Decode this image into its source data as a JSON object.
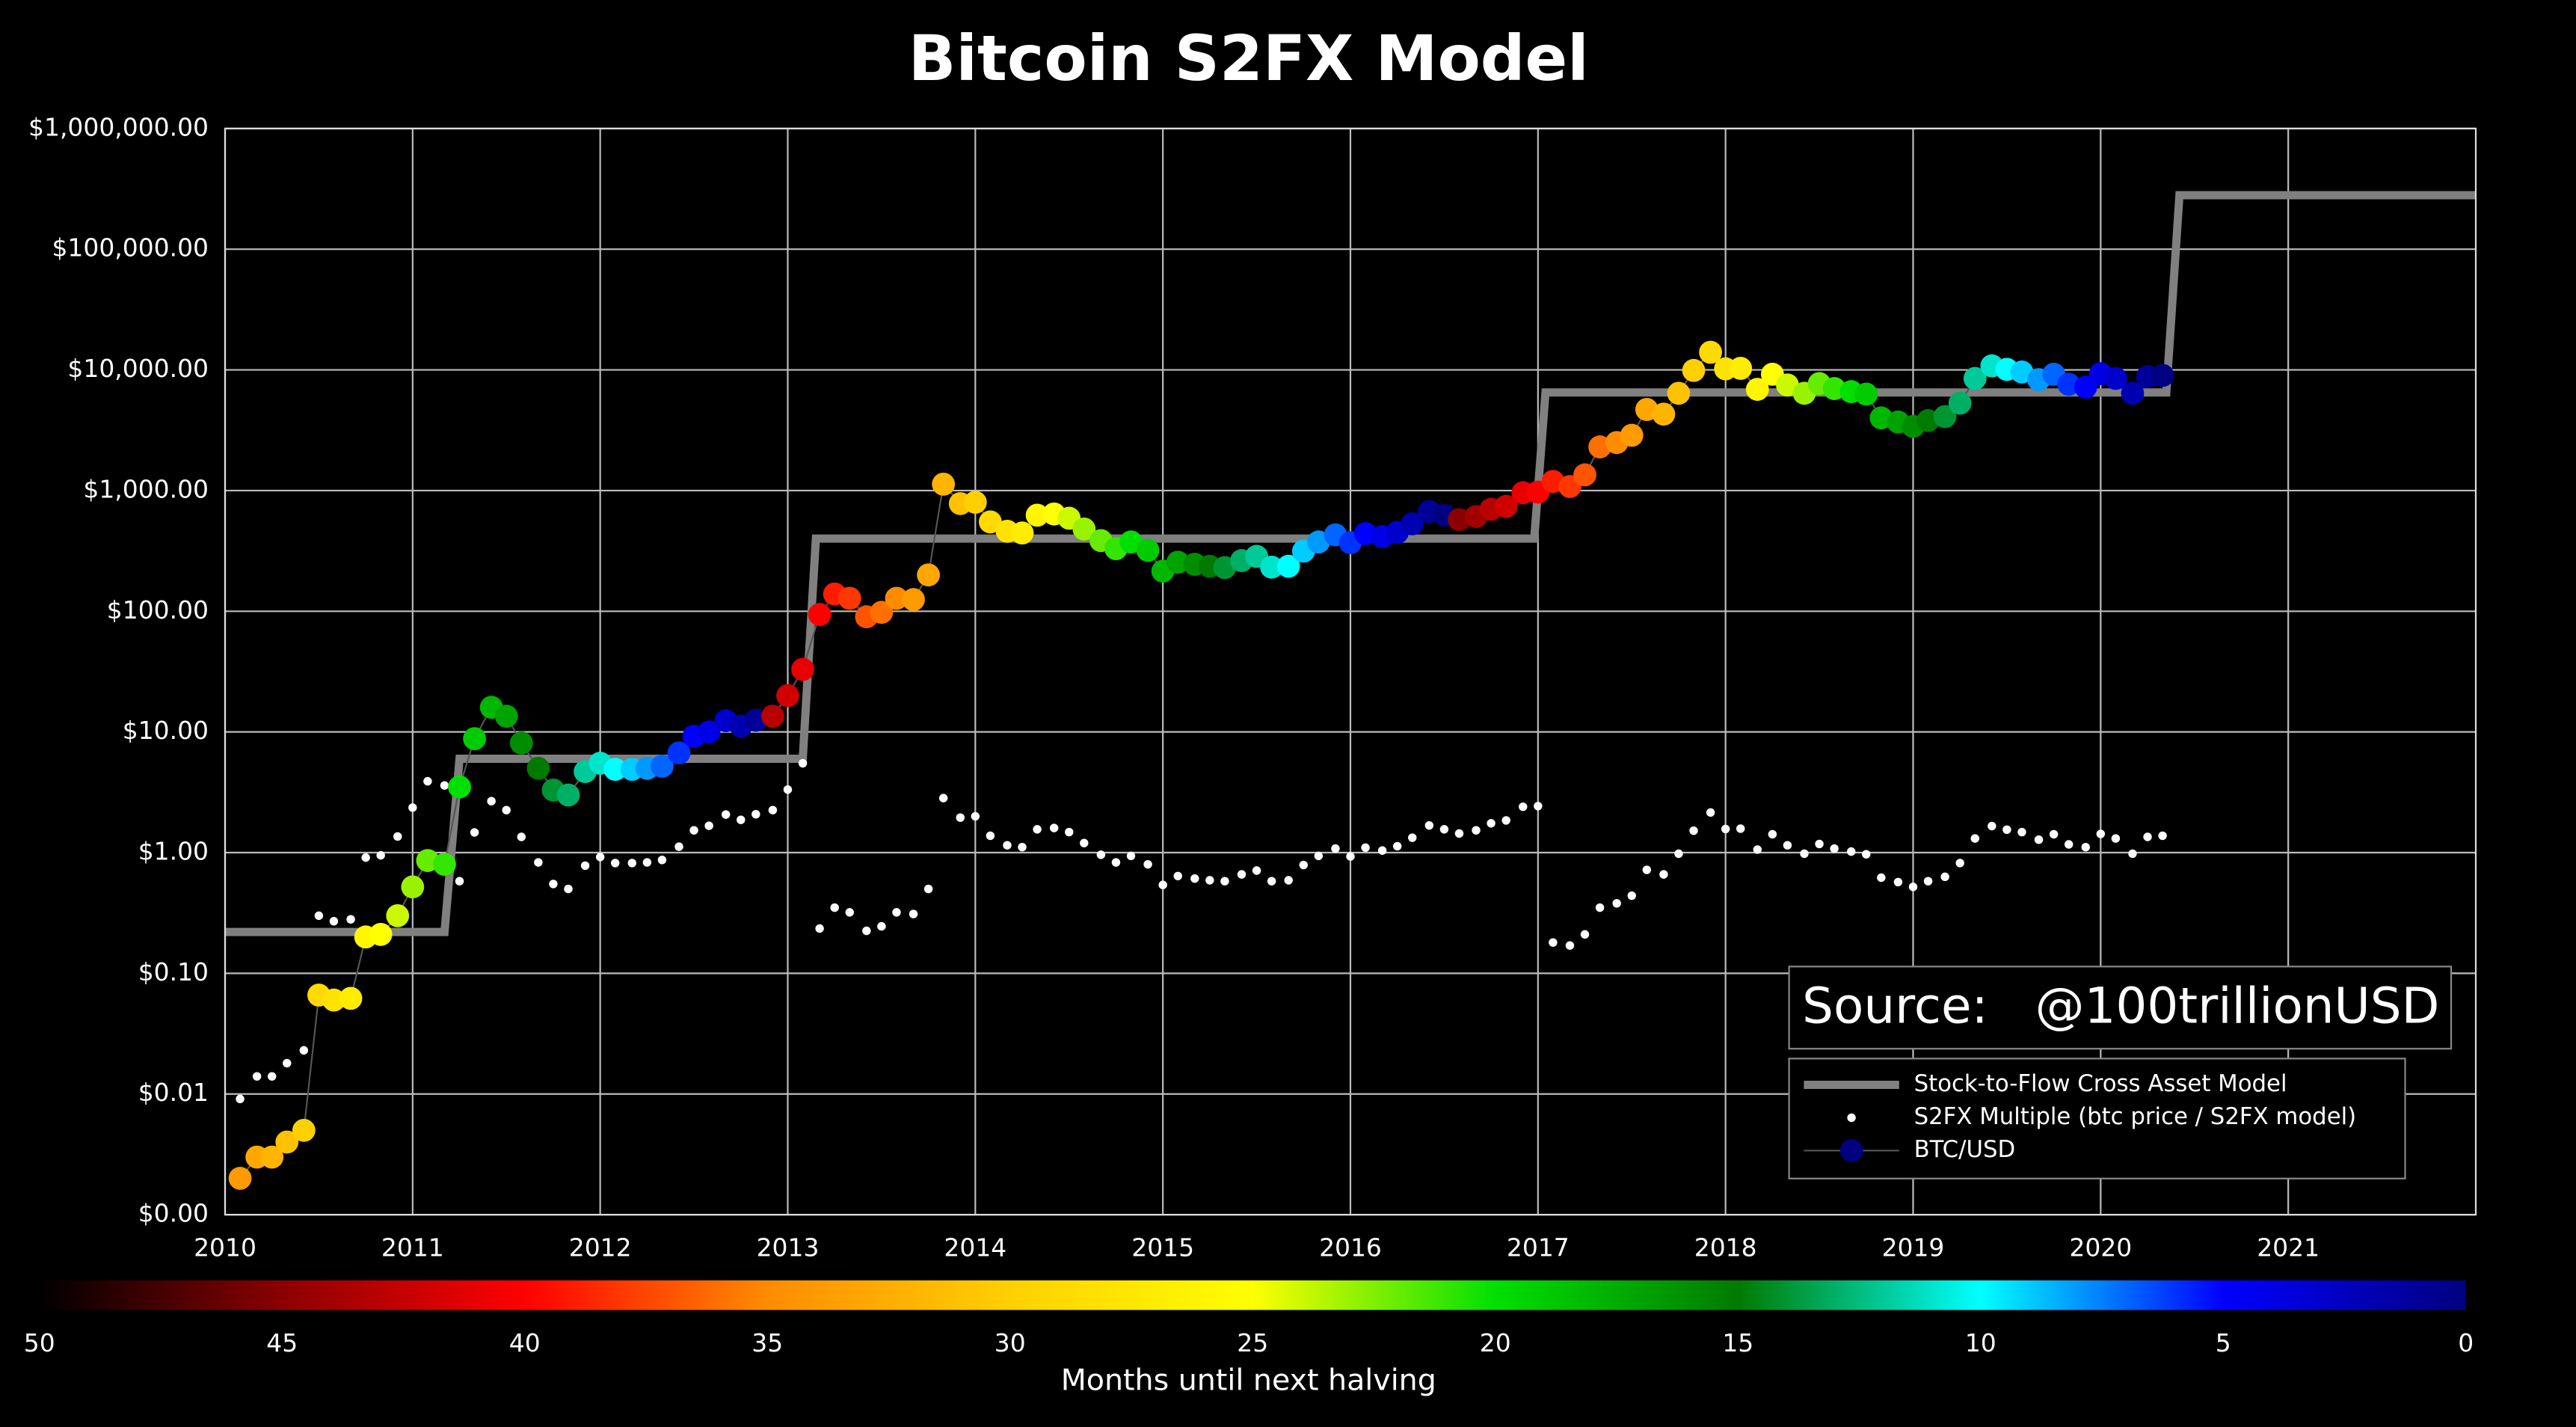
{
  "chart_data": {
    "type": "scatter",
    "title": "Bitcoin S2FX Model",
    "annotation": "Source:   @100trillionUSD",
    "log_y": true,
    "grid": true,
    "legend": "lower right",
    "xlim": [
      2010,
      2022
    ],
    "xticks": [
      2010,
      2011,
      2012,
      2013,
      2014,
      2015,
      2016,
      2017,
      2018,
      2019,
      2020,
      2021
    ],
    "ylim": [
      0.001,
      1000000
    ],
    "yticks": [
      {
        "value": 0.001,
        "label": "$0.00"
      },
      {
        "value": 0.01,
        "label": "$0.01"
      },
      {
        "value": 0.1,
        "label": "$0.10"
      },
      {
        "value": 1,
        "label": "$1.00"
      },
      {
        "value": 10,
        "label": "$10.00"
      },
      {
        "value": 100,
        "label": "$100.00"
      },
      {
        "value": 1000,
        "label": "$1,000.00"
      },
      {
        "value": 10000,
        "label": "$10,000.00"
      },
      {
        "value": 100000,
        "label": "$100,000.00"
      },
      {
        "value": 1000000,
        "label": "$1,000,000.00"
      }
    ],
    "series": [
      {
        "name": "Stock-to-Flow Cross Asset Model",
        "style": "line",
        "color": "#808080",
        "x": [
          2010,
          2011.17,
          2011.25,
          2013.08,
          2013.15,
          2016.98,
          2017.04,
          2020.35,
          2020.42,
          2022
        ],
        "values": [
          0.22,
          0.22,
          6,
          6,
          400,
          400,
          6500,
          6500,
          280000,
          280000
        ]
      },
      {
        "name": "S2FX Multiple (btc price / S2FX model)",
        "style": "dots",
        "color": "#ffffff",
        "x": [
          2010.08,
          2010.17,
          2010.25,
          2010.33,
          2010.42,
          2010.5,
          2010.58,
          2010.67,
          2010.75,
          2010.83,
          2010.92,
          2011,
          2011.08,
          2011.17,
          2011.25,
          2011.33,
          2011.42,
          2011.5,
          2011.58,
          2011.67,
          2011.75,
          2011.83,
          2011.92,
          2012,
          2012.08,
          2012.17,
          2012.25,
          2012.33,
          2012.42,
          2012.5,
          2012.58,
          2012.67,
          2012.75,
          2012.83,
          2012.92,
          2013,
          2013.08,
          2013.17,
          2013.25,
          2013.33,
          2013.42,
          2013.5,
          2013.58,
          2013.67,
          2013.75,
          2013.83,
          2013.92,
          2014,
          2014.08,
          2014.17,
          2014.25,
          2014.33,
          2014.42,
          2014.5,
          2014.58,
          2014.67,
          2014.75,
          2014.83,
          2014.92,
          2015,
          2015.08,
          2015.17,
          2015.25,
          2015.33,
          2015.42,
          2015.5,
          2015.58,
          2015.67,
          2015.75,
          2015.83,
          2015.92,
          2016,
          2016.08,
          2016.17,
          2016.25,
          2016.33,
          2016.42,
          2016.5,
          2016.58,
          2016.67,
          2016.75,
          2016.83,
          2016.92,
          2017,
          2017.08,
          2017.17,
          2017.25,
          2017.33,
          2017.42,
          2017.5,
          2017.58,
          2017.67,
          2017.75,
          2017.83,
          2017.92,
          2018,
          2018.08,
          2018.17,
          2018.25,
          2018.33,
          2018.42,
          2018.5,
          2018.58,
          2018.67,
          2018.75,
          2018.83,
          2018.92,
          2019,
          2019.08,
          2019.17,
          2019.25,
          2019.33,
          2019.42,
          2019.5,
          2019.58,
          2019.67,
          2019.75,
          2019.83,
          2019.92,
          2020,
          2020.08,
          2020.17,
          2020.25,
          2020.33
        ],
        "values": [
          0.0091,
          0.014,
          0.014,
          0.018,
          0.023,
          0.3,
          0.27,
          0.28,
          0.91,
          0.95,
          1.36,
          2.36,
          3.9,
          3.6,
          0.58,
          1.47,
          2.67,
          2.25,
          1.35,
          0.83,
          0.55,
          0.5,
          0.78,
          0.92,
          0.82,
          0.82,
          0.83,
          0.87,
          1.12,
          1.53,
          1.67,
          2.07,
          1.87,
          2.08,
          2.25,
          3.33,
          5.5,
          0.235,
          0.35,
          0.32,
          0.225,
          0.245,
          0.32,
          0.31,
          0.5,
          2.83,
          1.95,
          2.0,
          1.38,
          1.15,
          1.11,
          1.56,
          1.6,
          1.48,
          1.2,
          0.96,
          0.83,
          0.94,
          0.8,
          0.54,
          0.64,
          0.61,
          0.59,
          0.58,
          0.66,
          0.71,
          0.58,
          0.59,
          0.79,
          0.94,
          1.08,
          0.93,
          1.1,
          1.04,
          1.13,
          1.33,
          1.68,
          1.56,
          1.44,
          1.53,
          1.75,
          1.85,
          2.4,
          2.43,
          0.18,
          0.17,
          0.21,
          0.35,
          0.38,
          0.44,
          0.72,
          0.66,
          0.98,
          1.52,
          2.15,
          1.57,
          1.58,
          1.06,
          1.42,
          1.15,
          0.98,
          1.18,
          1.08,
          1.02,
          0.97,
          0.62,
          0.57,
          0.52,
          0.58,
          0.63,
          0.82,
          1.31,
          1.66,
          1.55,
          1.48,
          1.28,
          1.42,
          1.17,
          1.11,
          1.43,
          1.31,
          0.98,
          1.35,
          1.38
        ]
      },
      {
        "name": "BTC/USD",
        "style": "colored-dots",
        "color": "#000080",
        "line_color": "#555555",
        "x": [
          2010.08,
          2010.17,
          2010.25,
          2010.33,
          2010.42,
          2010.5,
          2010.58,
          2010.67,
          2010.75,
          2010.83,
          2010.92,
          2011,
          2011.08,
          2011.17,
          2011.25,
          2011.33,
          2011.42,
          2011.5,
          2011.58,
          2011.67,
          2011.75,
          2011.83,
          2011.92,
          2012,
          2012.08,
          2012.17,
          2012.25,
          2012.33,
          2012.42,
          2012.5,
          2012.58,
          2012.67,
          2012.75,
          2012.83,
          2012.92,
          2013,
          2013.08,
          2013.17,
          2013.25,
          2013.33,
          2013.42,
          2013.5,
          2013.58,
          2013.67,
          2013.75,
          2013.83,
          2013.92,
          2014,
          2014.08,
          2014.17,
          2014.25,
          2014.33,
          2014.42,
          2014.5,
          2014.58,
          2014.67,
          2014.75,
          2014.83,
          2014.92,
          2015,
          2015.08,
          2015.17,
          2015.25,
          2015.33,
          2015.42,
          2015.5,
          2015.58,
          2015.67,
          2015.75,
          2015.83,
          2015.92,
          2016,
          2016.08,
          2016.17,
          2016.25,
          2016.33,
          2016.42,
          2016.5,
          2016.58,
          2016.67,
          2016.75,
          2016.83,
          2016.92,
          2017,
          2017.08,
          2017.17,
          2017.25,
          2017.33,
          2017.42,
          2017.5,
          2017.58,
          2017.67,
          2017.75,
          2017.83,
          2017.92,
          2018,
          2018.08,
          2018.17,
          2018.25,
          2018.33,
          2018.42,
          2018.5,
          2018.58,
          2018.67,
          2018.75,
          2018.83,
          2018.92,
          2019,
          2019.08,
          2019.17,
          2019.25,
          2019.33,
          2019.42,
          2019.5,
          2019.58,
          2019.67,
          2019.75,
          2019.83,
          2019.92,
          2020,
          2020.08,
          2020.17,
          2020.25,
          2020.33
        ],
        "values": [
          0.002,
          0.003,
          0.003,
          0.004,
          0.005,
          0.066,
          0.06,
          0.062,
          0.2,
          0.21,
          0.3,
          0.52,
          0.86,
          0.8,
          3.5,
          8.8,
          16,
          13.5,
          8.1,
          5,
          3.3,
          3,
          4.7,
          5.5,
          4.9,
          4.9,
          5,
          5.2,
          6.7,
          9.2,
          10,
          12.4,
          11.2,
          12.5,
          13.5,
          20,
          33,
          94,
          139,
          128,
          90,
          98,
          128,
          125,
          200,
          1130,
          780,
          800,
          550,
          460,
          445,
          625,
          640,
          590,
          480,
          385,
          330,
          375,
          320,
          215,
          255,
          245,
          236,
          230,
          263,
          285,
          232,
          236,
          315,
          375,
          430,
          370,
          440,
          415,
          450,
          530,
          670,
          625,
          575,
          610,
          700,
          740,
          960,
          970,
          1190,
          1080,
          1350,
          2300,
          2500,
          2870,
          4700,
          4300,
          6400,
          9900,
          14000,
          10200,
          10300,
          6900,
          9200,
          7500,
          6400,
          7700,
          7000,
          6600,
          6300,
          4000,
          3700,
          3400,
          3800,
          4100,
          5300,
          8500,
          10800,
          10100,
          9600,
          8300,
          9200,
          7600,
          7200,
          9300,
          8500,
          6400,
          8800,
          9000
        ],
        "color_values": [
          34,
          33,
          32,
          31,
          30,
          29,
          28,
          27,
          26,
          25,
          24,
          23,
          22,
          21,
          20,
          19,
          18,
          17,
          16,
          15,
          14,
          13,
          12,
          11,
          10,
          9,
          8,
          7,
          6,
          5,
          4,
          3,
          2,
          1,
          43,
          42,
          41,
          40,
          39,
          38,
          37,
          36,
          35,
          34,
          33,
          32,
          31,
          30,
          29,
          28,
          27,
          26,
          25,
          24,
          23,
          22,
          21,
          20,
          19,
          18,
          17,
          16,
          15,
          14,
          13,
          12,
          11,
          10,
          9,
          8,
          7,
          6,
          5,
          4,
          3,
          2,
          1,
          0,
          45,
          44,
          43,
          42,
          41,
          40,
          39,
          38,
          37,
          36,
          35,
          34,
          33,
          32,
          31,
          30,
          29,
          28,
          27,
          26,
          25,
          24,
          23,
          22,
          21,
          20,
          19,
          18,
          17,
          16,
          15,
          14,
          13,
          12,
          11,
          10,
          9,
          8,
          7,
          6,
          5,
          4,
          3,
          2,
          1,
          0
        ]
      }
    ],
    "colorbar": {
      "label": "Months until next halving",
      "range": [
        50,
        0
      ],
      "ticks": [
        50,
        45,
        40,
        35,
        30,
        25,
        20,
        15,
        10,
        5,
        0
      ],
      "colors": [
        "#000000",
        "#8b0000",
        "#ff0000",
        "#ff8c00",
        "#ffd000",
        "#ffff00",
        "#00e000",
        "#007a00",
        "#00ffff",
        "#0000ff",
        "#000080"
      ]
    }
  }
}
